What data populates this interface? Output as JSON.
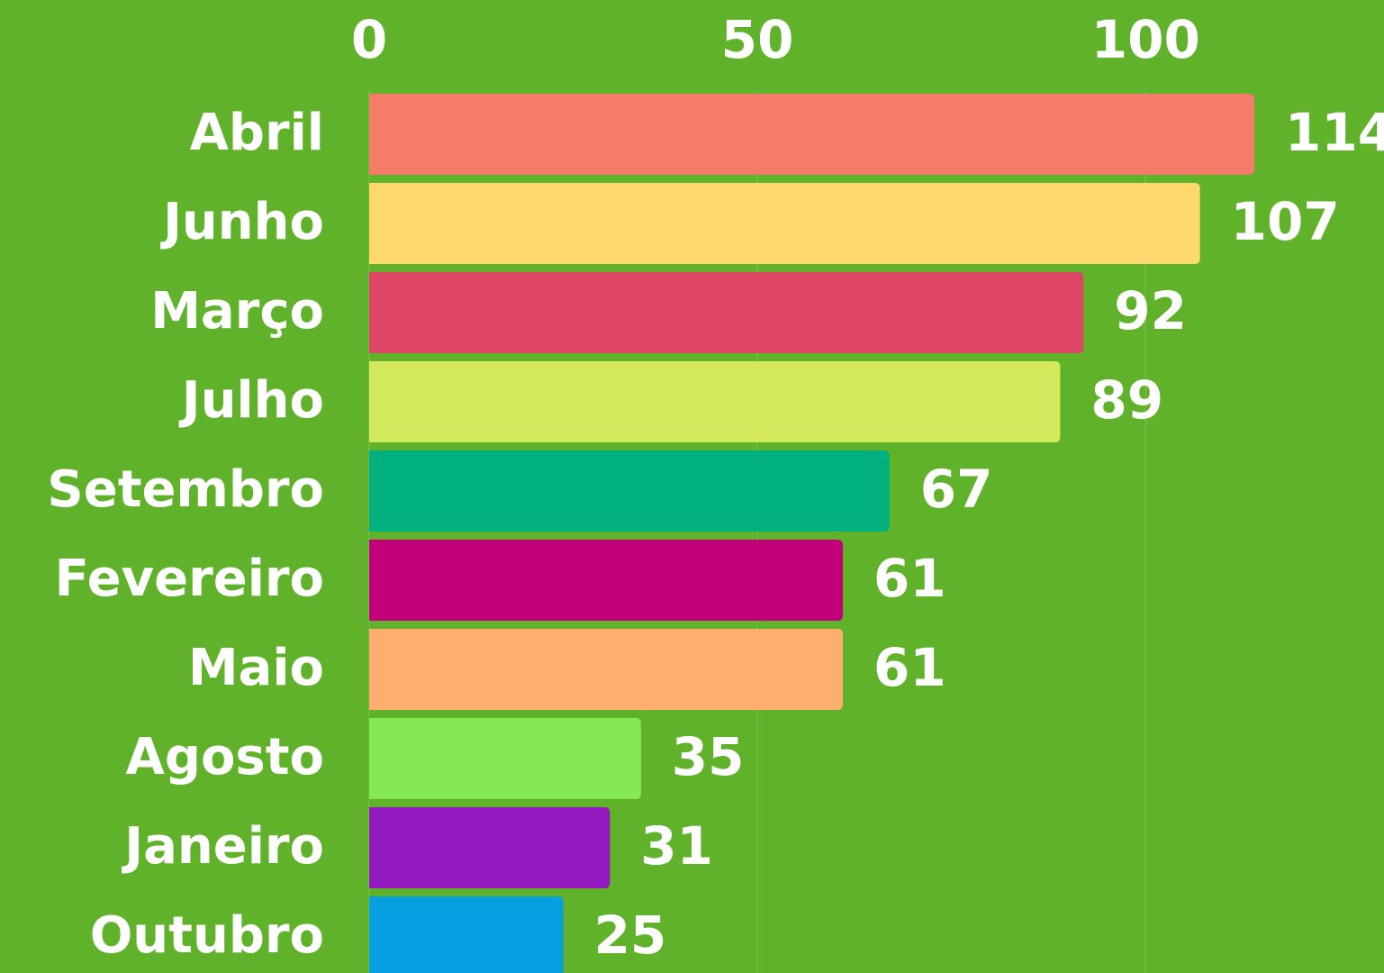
{
  "chart_data": {
    "type": "bar",
    "orientation": "horizontal",
    "categories": [
      "Abril",
      "Junho",
      "Março",
      "Julho",
      "Setembro",
      "Fevereiro",
      "Maio",
      "Agosto",
      "Janeiro",
      "Outubro"
    ],
    "values": [
      114,
      107,
      92,
      89,
      67,
      61,
      61,
      35,
      31,
      25
    ],
    "colors": [
      "#f47c68",
      "#ffd86e",
      "#de4567",
      "#d3e85b",
      "#00b07f",
      "#c2007a",
      "#ffae6e",
      "#84e955",
      "#9119bd",
      "#069fdf"
    ],
    "xlim": [
      0,
      130.7
    ],
    "xticks": [
      0,
      50,
      100
    ],
    "grid": true
  }
}
